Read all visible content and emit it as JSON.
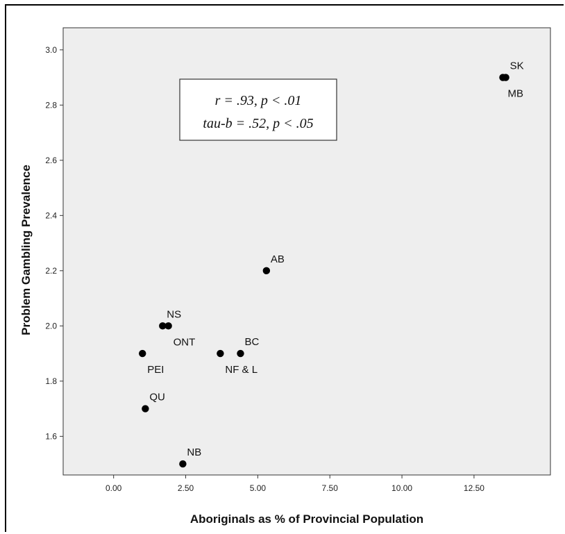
{
  "chart_data": {
    "type": "scatter",
    "xlabel": "Aboriginals as % of Provincial Population",
    "ylabel": "Problem Gambling Prevalence",
    "xlim": [
      -1.75,
      15.15
    ],
    "ylim": [
      1.46,
      3.08
    ],
    "xticks": [
      0,
      2.5,
      5,
      7.5,
      10,
      12.5
    ],
    "xtick_labels": [
      "0.00",
      "2.50",
      "5.00",
      "7.50",
      "10.00",
      "12.50"
    ],
    "yticks": [
      1.6,
      1.8,
      2.0,
      2.2,
      2.4,
      2.6,
      2.8,
      3.0
    ],
    "ytick_labels": [
      "1.6",
      "1.8",
      "2.0",
      "2.2",
      "2.4",
      "2.6",
      "2.8",
      "3.0"
    ],
    "grid": false,
    "annotation": {
      "line1": "r = .93, p < .01",
      "line2": "tau-b = .52, p < .05"
    },
    "points": [
      {
        "label": "SK",
        "x": 13.6,
        "y": 2.9,
        "label_pos": "above-right"
      },
      {
        "label": "MB",
        "x": 13.5,
        "y": 2.9,
        "label_pos": "below-right"
      },
      {
        "label": "AB",
        "x": 5.3,
        "y": 2.2,
        "label_pos": "above-right"
      },
      {
        "label": "NS",
        "x": 1.7,
        "y": 2.0,
        "label_pos": "above-right"
      },
      {
        "label": "ONT",
        "x": 1.9,
        "y": 2.0,
        "label_pos": "below-right"
      },
      {
        "label": "PEI",
        "x": 1.0,
        "y": 1.9,
        "label_pos": "below-right"
      },
      {
        "label": "BC",
        "x": 4.4,
        "y": 1.9,
        "label_pos": "above-right"
      },
      {
        "label": "NF & L",
        "x": 3.7,
        "y": 1.9,
        "label_pos": "below-right"
      },
      {
        "label": "QU",
        "x": 1.1,
        "y": 1.7,
        "label_pos": "above-right"
      },
      {
        "label": "NB",
        "x": 2.4,
        "y": 1.5,
        "label_pos": "above-right"
      }
    ]
  }
}
